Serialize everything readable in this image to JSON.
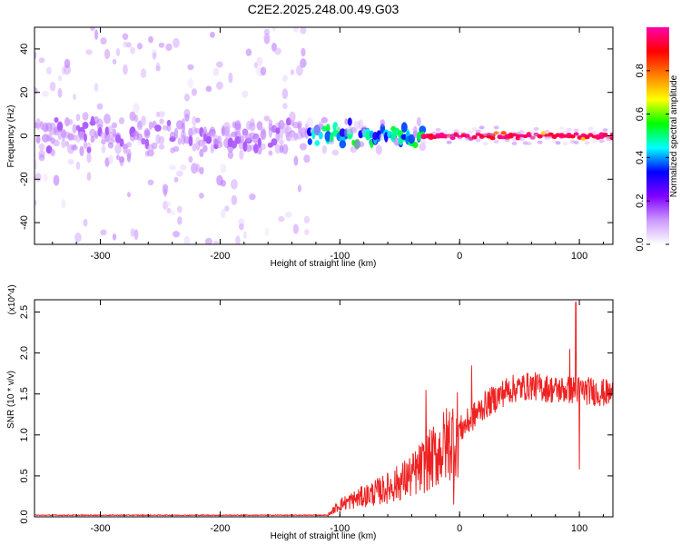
{
  "title": "C2E2.2025.248.00.49.G03",
  "chart_data": [
    {
      "type": "heatmap",
      "xlabel": "Height of straight line (km)",
      "ylabel": "Frequency (Hz)",
      "xlim": [
        -355,
        128
      ],
      "ylim": [
        -50,
        50
      ],
      "xticks": [
        -300,
        -200,
        -100,
        0,
        100
      ],
      "xtick_labels": [
        "-300",
        "-200",
        "-100",
        "0",
        "100"
      ],
      "yticks": [
        -40,
        -20,
        0,
        20,
        40
      ],
      "ytick_labels": [
        "-40",
        "-20",
        "0",
        "20",
        "40"
      ],
      "colorbar": {
        "label": "Normalized spectral amplitude",
        "range": [
          0,
          1
        ],
        "ticks": [
          0.0,
          0.2,
          0.4,
          0.6,
          0.8
        ],
        "tick_labels": [
          "0.0",
          "0.2",
          "0.4",
          "0.6",
          "0.8"
        ],
        "colormap": [
          "#ffffff",
          "#cc99ff",
          "#8000ff",
          "#0000ff",
          "#00ffff",
          "#00ff00",
          "#ffff00",
          "#ff8000",
          "#ff0000",
          "#ff00aa"
        ]
      },
      "regions": [
        {
          "x_range": [
            -355,
            -125
          ],
          "noise_spread_hz": 50,
          "core_spread_hz": 8,
          "core_amplitude": 0.15
        },
        {
          "x_range": [
            -125,
            -30
          ],
          "noise_spread_hz": 8,
          "core_spread_hz": 4,
          "core_amplitude": 0.5
        },
        {
          "x_range": [
            -30,
            128
          ],
          "noise_spread_hz": 4,
          "core_spread_hz": 1,
          "core_amplitude": 0.9
        }
      ]
    },
    {
      "type": "line",
      "xlabel": "Height of straight line (km)",
      "ylabel": "SNR (10 * v/v)",
      "scale_label": "(x10^4)",
      "color": "#ee2222",
      "xlim": [
        -355,
        128
      ],
      "ylim": [
        0,
        2.65
      ],
      "xticks": [
        -300,
        -200,
        -100,
        0,
        100
      ],
      "xtick_labels": [
        "-300",
        "-200",
        "-100",
        "0",
        "100"
      ],
      "yticks": [
        0.0,
        0.5,
        1.0,
        1.5,
        2.0,
        2.5
      ],
      "ytick_labels": [
        "0.0",
        "0.5",
        "1.0",
        "1.5",
        "2.0",
        "2.5"
      ],
      "trend": {
        "x": [
          -355,
          -110,
          -100,
          -80,
          -60,
          -40,
          -20,
          0,
          20,
          40,
          60,
          80,
          100,
          128
        ],
        "y": [
          0.02,
          0.02,
          0.15,
          0.25,
          0.35,
          0.5,
          0.75,
          1.05,
          1.35,
          1.55,
          1.6,
          1.55,
          1.55,
          1.5
        ]
      },
      "spikes": [
        {
          "x": 97,
          "y": 2.62
        },
        {
          "x": 92,
          "y": 2.05
        },
        {
          "x": 100,
          "y": 0.58
        },
        {
          "x": -28,
          "y": 1.55
        },
        {
          "x": 10,
          "y": 1.85
        },
        {
          "x": -5,
          "y": 0.15
        }
      ]
    }
  ]
}
